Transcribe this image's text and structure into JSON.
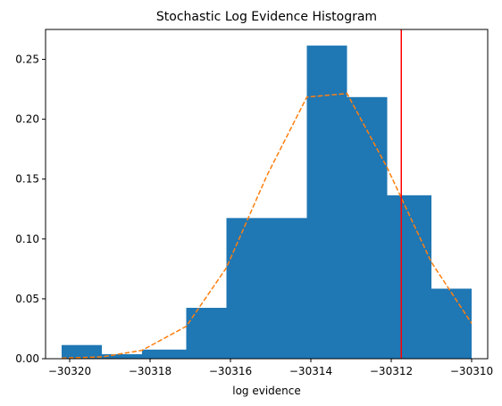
{
  "chart_data": {
    "type": "bar",
    "title": "Stochastic Log Evidence Histogram",
    "xlabel": "log evidence",
    "ylabel": "",
    "xlim": [
      -30320.6,
      -30309.6
    ],
    "ylim": [
      0,
      0.275
    ],
    "bins": [
      {
        "x0": -30320.2,
        "x1": -30319.2,
        "value": 0.0114
      },
      {
        "x0": -30319.2,
        "x1": -30318.2,
        "value": 0.0038
      },
      {
        "x0": -30318.2,
        "x1": -30317.1,
        "value": 0.0076
      },
      {
        "x0": -30317.1,
        "x1": -30316.1,
        "value": 0.0425
      },
      {
        "x0": -30316.1,
        "x1": -30315.1,
        "value": 0.1175
      },
      {
        "x0": -30315.1,
        "x1": -30314.1,
        "value": 0.1175
      },
      {
        "x0": -30314.1,
        "x1": -30313.1,
        "value": 0.2615
      },
      {
        "x0": -30313.1,
        "x1": -30312.1,
        "value": 0.2185
      },
      {
        "x0": -30312.1,
        "x1": -30311.0,
        "value": 0.1365
      },
      {
        "x0": -30311.0,
        "x1": -30310.0,
        "value": 0.0585
      }
    ],
    "bar_color": "#1f77b4",
    "fit_curve": {
      "style": "dashed",
      "color": "#ff7f0e",
      "x": [
        -30320.2,
        -30319.2,
        -30318.2,
        -30317.1,
        -30316.1,
        -30315.1,
        -30314.1,
        -30313.1,
        -30312.1,
        -30311.0,
        -30310.0
      ],
      "y": [
        0.0005,
        0.0015,
        0.007,
        0.027,
        0.076,
        0.1525,
        0.2185,
        0.2215,
        0.1595,
        0.0805,
        0.0295
      ]
    },
    "vertical_line": {
      "x": -30311.75,
      "color": "#ff0000"
    },
    "x_ticks": [
      {
        "value": -30320,
        "label": "−30320"
      },
      {
        "value": -30318,
        "label": "−30318"
      },
      {
        "value": -30316,
        "label": "−30316"
      },
      {
        "value": -30314,
        "label": "−30314"
      },
      {
        "value": -30312,
        "label": "−30312"
      },
      {
        "value": -30310,
        "label": "−30310"
      }
    ],
    "y_ticks": [
      {
        "value": 0.0,
        "label": "0.00"
      },
      {
        "value": 0.05,
        "label": "0.05"
      },
      {
        "value": 0.1,
        "label": "0.10"
      },
      {
        "value": 0.15,
        "label": "0.15"
      },
      {
        "value": 0.2,
        "label": "0.20"
      },
      {
        "value": 0.25,
        "label": "0.25"
      }
    ],
    "grid": false,
    "legend": "none"
  }
}
